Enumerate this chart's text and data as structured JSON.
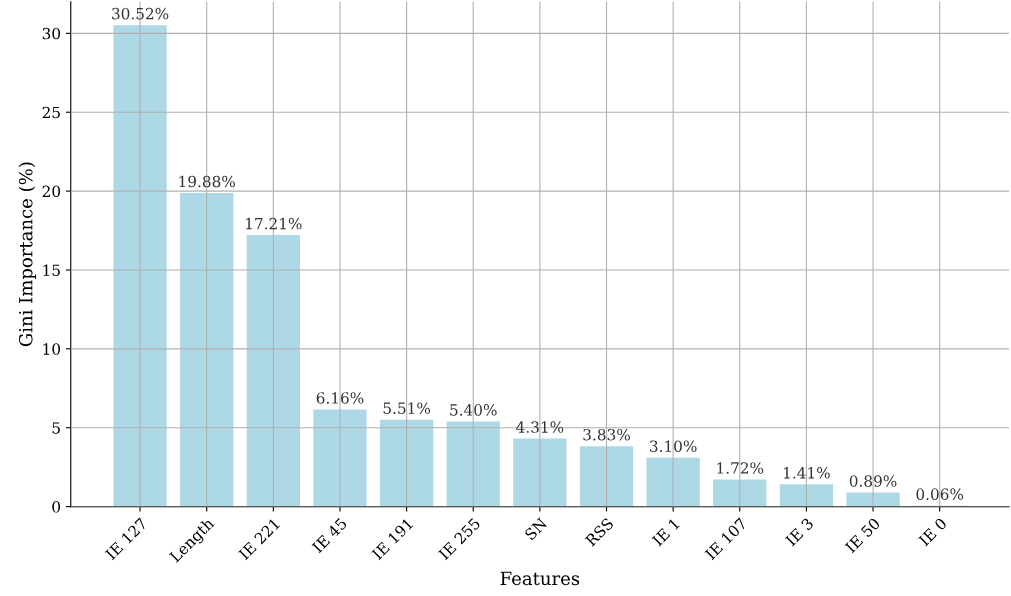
{
  "chart_data": {
    "type": "bar",
    "xlabel": "Features",
    "ylabel": "Gini Importance (%)",
    "categories": [
      "IE 127",
      "Length",
      "IE 221",
      "IE 45",
      "IE 191",
      "IE 255",
      "SN",
      "RSS",
      "IE 1",
      "IE 107",
      "IE 3",
      "IE 50",
      "IE 0"
    ],
    "values": [
      30.52,
      19.88,
      17.21,
      6.16,
      5.51,
      5.4,
      4.31,
      3.83,
      3.1,
      1.72,
      1.41,
      0.89,
      0.06
    ],
    "value_labels": [
      "30.52%",
      "19.88%",
      "17.21%",
      "6.16%",
      "5.51%",
      "5.40%",
      "4.31%",
      "3.83%",
      "3.10%",
      "1.72%",
      "1.41%",
      "0.89%",
      "0.06%"
    ],
    "color": "#add8e6",
    "ylim": [
      0,
      32
    ],
    "yticks": [
      0,
      5,
      10,
      15,
      20,
      25,
      30
    ],
    "grid": true,
    "legend": false
  }
}
